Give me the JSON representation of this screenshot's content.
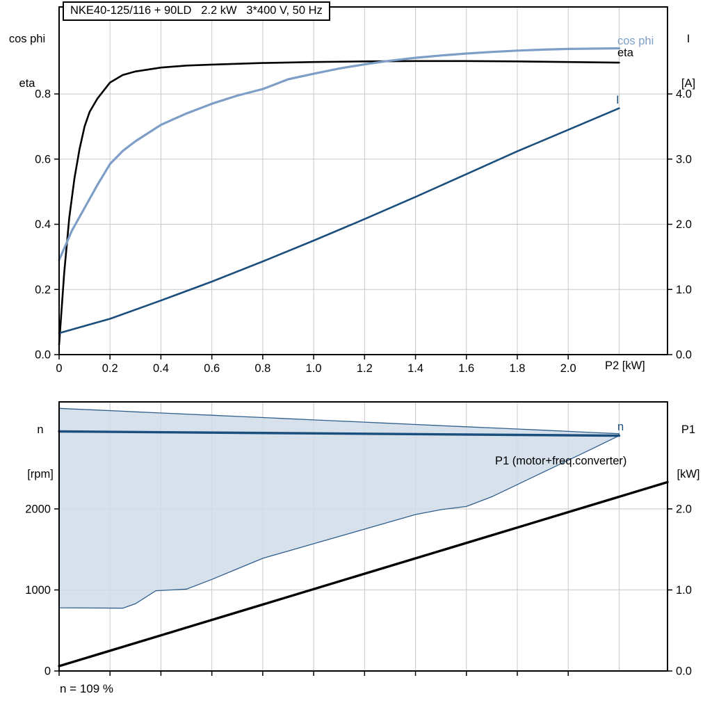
{
  "colors": {
    "grid": "#c8c8c8",
    "axis": "#000000",
    "eta": "#000000",
    "cos_phi": "#7d9ec6",
    "current": "#1a4e7c",
    "band_fill": "#cfdce9",
    "band_edge": "#2f5d8c",
    "p1": "#000000"
  },
  "chart_data": [
    {
      "id": "motor-performance-chart",
      "type": "line",
      "title": "NKE40-125/116 + 90LD   2.2 kW   3*400 V, 50 Hz",
      "xlabel": "P2 [kW]",
      "xlim": [
        0,
        2.39
      ],
      "x_ticks": {
        "values": [
          0,
          0.2,
          0.4,
          0.6,
          0.8,
          1.0,
          1.2,
          1.4,
          1.6,
          1.8,
          2.0
        ],
        "labels": [
          "0",
          "0.2",
          "0.4",
          "0.6",
          "0.8",
          "1.0",
          "1.2",
          "1.4",
          "1.6",
          "1.8",
          "2.0"
        ]
      },
      "x_grid": [
        0.2,
        0.4,
        0.6,
        0.8,
        1.0,
        1.2,
        1.4,
        1.6,
        1.8,
        2.0,
        2.2
      ],
      "left_axis": {
        "title_lines": [
          "cos phi",
          "eta"
        ],
        "lim": [
          0,
          1.067
        ],
        "tick_values": [
          0,
          0.2,
          0.4,
          0.6,
          0.8
        ],
        "tick_labels": [
          "0.0",
          "0.2",
          "0.4",
          "0.6",
          "0.8"
        ],
        "grid": [
          0.2,
          0.4,
          0.6,
          0.8
        ]
      },
      "right_axis": {
        "title_lines": [
          "I",
          "[A]"
        ],
        "lim": [
          0,
          5.335
        ],
        "tick_values": [
          0,
          1,
          2,
          3,
          4
        ],
        "tick_labels": [
          "0.0",
          "1.0",
          "2.0",
          "3.0",
          "4.0"
        ],
        "grid": []
      },
      "series": [
        {
          "name": "eta",
          "axis": "left",
          "color": "#000000",
          "width": 2.6,
          "points": [
            [
              0,
              0.03
            ],
            [
              0.02,
              0.25
            ],
            [
              0.04,
              0.42
            ],
            [
              0.06,
              0.54
            ],
            [
              0.08,
              0.63
            ],
            [
              0.1,
              0.7
            ],
            [
              0.12,
              0.745
            ],
            [
              0.15,
              0.785
            ],
            [
              0.2,
              0.835
            ],
            [
              0.25,
              0.858
            ],
            [
              0.3,
              0.869
            ],
            [
              0.4,
              0.881
            ],
            [
              0.5,
              0.887
            ],
            [
              0.6,
              0.89
            ],
            [
              0.8,
              0.895
            ],
            [
              1.0,
              0.898
            ],
            [
              1.2,
              0.9
            ],
            [
              1.4,
              0.901
            ],
            [
              1.6,
              0.901
            ],
            [
              1.8,
              0.9
            ],
            [
              2.0,
              0.898
            ],
            [
              2.2,
              0.896
            ]
          ]
        },
        {
          "name": "cos phi",
          "axis": "left",
          "color": "#7d9ec6",
          "width": 3.2,
          "points": [
            [
              0,
              0.29
            ],
            [
              0.05,
              0.38
            ],
            [
              0.1,
              0.45
            ],
            [
              0.15,
              0.52
            ],
            [
              0.2,
              0.585
            ],
            [
              0.25,
              0.625
            ],
            [
              0.3,
              0.655
            ],
            [
              0.4,
              0.705
            ],
            [
              0.5,
              0.74
            ],
            [
              0.6,
              0.77
            ],
            [
              0.7,
              0.795
            ],
            [
              0.8,
              0.815
            ],
            [
              0.9,
              0.845
            ],
            [
              1.0,
              0.862
            ],
            [
              1.1,
              0.878
            ],
            [
              1.2,
              0.891
            ],
            [
              1.3,
              0.902
            ],
            [
              1.4,
              0.911
            ],
            [
              1.5,
              0.918
            ],
            [
              1.6,
              0.924
            ],
            [
              1.7,
              0.929
            ],
            [
              1.8,
              0.933
            ],
            [
              1.9,
              0.936
            ],
            [
              2.0,
              0.938
            ],
            [
              2.2,
              0.94
            ]
          ]
        },
        {
          "name": "I",
          "axis": "right",
          "color": "#1a4e7c",
          "width": 2.6,
          "points": [
            [
              0,
              0.33
            ],
            [
              0.2,
              0.55
            ],
            [
              0.4,
              0.83
            ],
            [
              0.6,
              1.12
            ],
            [
              0.8,
              1.43
            ],
            [
              1.0,
              1.75
            ],
            [
              1.2,
              2.08
            ],
            [
              1.4,
              2.42
            ],
            [
              1.6,
              2.77
            ],
            [
              1.8,
              3.12
            ],
            [
              2.0,
              3.45
            ],
            [
              2.2,
              3.78
            ]
          ]
        }
      ]
    },
    {
      "id": "speed-power-chart",
      "type": "line+band",
      "xlabel": "",
      "xlim": [
        0,
        2.39
      ],
      "x_ticks": {
        "values": [
          0,
          0.2,
          0.4,
          0.6,
          0.8,
          1.0,
          1.2,
          1.4,
          1.6,
          1.8,
          2.0
        ],
        "labels": null
      },
      "x_grid": [
        0.2,
        0.4,
        0.6,
        0.8,
        1.0,
        1.2,
        1.4,
        1.6,
        1.8,
        2.0,
        2.2
      ],
      "left_axis": {
        "title_lines": [
          "n",
          "[rpm]"
        ],
        "lim": [
          0,
          3320
        ],
        "tick_values": [
          0,
          1000,
          2000
        ],
        "tick_labels": [
          "0",
          "1000",
          "2000"
        ],
        "grid": [
          1000,
          2000
        ]
      },
      "right_axis": {
        "title_lines": [
          "P1",
          "[kW]"
        ],
        "lim": [
          0,
          3.32
        ],
        "tick_values": [
          0,
          1,
          2
        ],
        "tick_labels": [
          "0.0",
          "1.0",
          "2.0"
        ],
        "grid": []
      },
      "band": {
        "name": "speed-control-range",
        "fill": "#cfdce9",
        "edge": "#2f5d8c",
        "x": [
          0,
          0.25,
          0.3,
          0.38,
          0.5,
          0.6,
          0.7,
          0.8,
          0.9,
          1.0,
          1.1,
          1.2,
          1.3,
          1.4,
          1.5,
          1.6,
          1.7,
          1.8,
          1.9,
          2.0,
          2.1,
          2.2
        ],
        "upper": [
          3240,
          3205,
          3197,
          3186,
          3169,
          3155,
          3141,
          3127,
          3112,
          3098,
          3084,
          3070,
          3056,
          3041,
          3027,
          3013,
          2999,
          2985,
          2971,
          2956,
          2942,
          2928
        ],
        "lower": [
          780,
          775,
          830,
          990,
          1010,
          1130,
          1260,
          1390,
          1480,
          1570,
          1660,
          1750,
          1840,
          1930,
          1990,
          2030,
          2150,
          2300,
          2450,
          2600,
          2750,
          2903
        ]
      },
      "series": [
        {
          "name": "n",
          "axis": "left",
          "color": "#1a4e7c",
          "width": 3.4,
          "points": [
            [
              0,
              2955
            ],
            [
              2.2,
              2903
            ]
          ]
        },
        {
          "name": "P1 (motor+freq.converter)",
          "axis": "right",
          "color": "#000000",
          "width": 3.4,
          "points": [
            [
              0,
              0.06
            ],
            [
              2.39,
              2.33
            ]
          ]
        }
      ],
      "note": "n = 109 %"
    }
  ]
}
